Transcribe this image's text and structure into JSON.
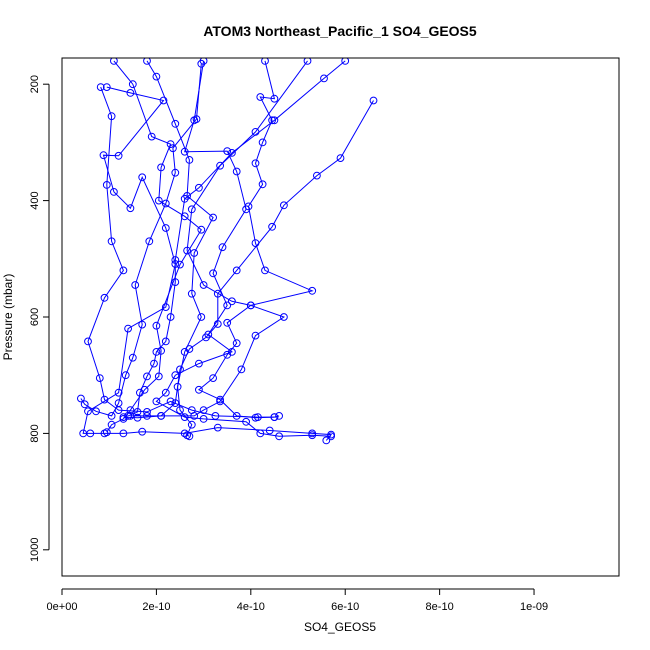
{
  "chart_data": {
    "type": "line",
    "title": "ATOM3 Northeast_Pacific_1 SO4_GEOS5",
    "xlabel": "SO4_GEOS5",
    "ylabel": "Pressure (mbar)",
    "xlim": [
      0,
      1.18e-09
    ],
    "ylim": [
      1045,
      155
    ],
    "y_reversed": true,
    "grid": false,
    "legend": "none",
    "x_ticks": [
      {
        "value": 0,
        "label": "0e+00"
      },
      {
        "value": 2e-10,
        "label": "2e-10"
      },
      {
        "value": 4e-10,
        "label": "4e-10"
      },
      {
        "value": 6e-10,
        "label": "6e-10"
      },
      {
        "value": 8e-10,
        "label": "8e-10"
      },
      {
        "value": 1e-09,
        "label": "1e-09"
      }
    ],
    "y_ticks": [
      {
        "value": 200,
        "label": "200"
      },
      {
        "value": 400,
        "label": "400"
      },
      {
        "value": 600,
        "label": "600"
      },
      {
        "value": 800,
        "label": "800"
      },
      {
        "value": 1000,
        "label": "1000"
      }
    ],
    "series": [
      {
        "color": "#0000ff",
        "marker": "open-circle",
        "points": [
          [
            9.5e-11,
            205
          ],
          [
            1.45e-10,
            215
          ],
          [
            2.15e-10,
            228
          ],
          [
            1.2e-10,
            323
          ],
          [
            8.8e-11,
            322
          ],
          [
            1.1e-10,
            385
          ],
          [
            1.45e-10,
            413
          ],
          [
            1.7e-10,
            360
          ],
          [
            2.2e-10,
            447
          ],
          [
            2.4e-10,
            509
          ],
          [
            2.2e-10,
            583
          ],
          [
            1.4e-10,
            620
          ],
          [
            1.2e-10,
            730
          ],
          [
            5.5e-11,
            762
          ],
          [
            4.5e-11,
            800
          ],
          [
            6e-11,
            800
          ],
          [
            9e-11,
            800
          ],
          [
            1.3e-10,
            800
          ],
          [
            1.7e-10,
            797
          ],
          [
            2.6e-10,
            800
          ],
          [
            3.3e-10,
            790
          ],
          [
            4.4e-10,
            795
          ],
          [
            5.3e-10,
            800
          ],
          [
            5.7e-10,
            802
          ],
          [
            5.6e-10,
            812
          ]
        ]
      },
      {
        "color": "#0000ff",
        "marker": "open-circle",
        "points": [
          [
            8.2e-11,
            205
          ],
          [
            1.05e-10,
            255
          ],
          [
            9.5e-11,
            373
          ],
          [
            1.05e-10,
            470
          ],
          [
            1.3e-10,
            520
          ],
          [
            9e-11,
            567
          ],
          [
            5.5e-11,
            642
          ],
          [
            8e-11,
            705
          ],
          [
            9e-11,
            742
          ],
          [
            1.2e-10,
            760
          ],
          [
            1.8e-10,
            763
          ],
          [
            2.3e-10,
            745
          ],
          [
            2.75e-10,
            760
          ],
          [
            3.25e-10,
            770
          ],
          [
            4.15e-10,
            772
          ],
          [
            4.5e-10,
            772
          ],
          [
            4.6e-10,
            770
          ]
        ]
      },
      {
        "color": "#0000ff",
        "marker": "open-circle",
        "points": [
          [
            1.1e-10,
            160
          ],
          [
            1.5e-10,
            200
          ],
          [
            1.9e-10,
            290
          ],
          [
            2.3e-10,
            303
          ],
          [
            2.1e-10,
            343
          ],
          [
            2.05e-10,
            400
          ],
          [
            2.6e-10,
            427
          ],
          [
            2.95e-10,
            450
          ],
          [
            2.5e-10,
            510
          ],
          [
            2e-10,
            615
          ],
          [
            2.1e-10,
            658
          ],
          [
            2.05e-10,
            702
          ],
          [
            1.75e-10,
            725
          ],
          [
            1.45e-10,
            760
          ],
          [
            1.3e-10,
            775
          ],
          [
            1.05e-10,
            785
          ],
          [
            9.5e-11,
            798
          ]
        ]
      },
      {
        "color": "#0000ff",
        "marker": "open-circle",
        "points": [
          [
            1.8e-10,
            160
          ],
          [
            2e-10,
            187
          ],
          [
            2.4e-10,
            268
          ],
          [
            2.7e-10,
            330
          ],
          [
            2.65e-10,
            392
          ],
          [
            3.2e-10,
            429
          ],
          [
            2.8e-10,
            490
          ],
          [
            2.75e-10,
            560
          ],
          [
            2.95e-10,
            600
          ],
          [
            2.6e-10,
            660
          ],
          [
            2.45e-10,
            720
          ],
          [
            2.5e-10,
            760
          ],
          [
            2.75e-10,
            785
          ],
          [
            2.65e-10,
            803
          ],
          [
            2.7e-10,
            805
          ]
        ]
      },
      {
        "color": "#0000ff",
        "marker": "open-circle",
        "points": [
          [
            3e-10,
            160
          ],
          [
            2.8e-10,
            262
          ],
          [
            2.6e-10,
            316
          ],
          [
            3.5e-10,
            315
          ],
          [
            3.7e-10,
            350
          ],
          [
            3.9e-10,
            415
          ],
          [
            3.4e-10,
            480
          ],
          [
            3.2e-10,
            525
          ],
          [
            3.5e-10,
            580
          ],
          [
            3.1e-10,
            630
          ],
          [
            3.6e-10,
            660
          ],
          [
            2.9e-10,
            680
          ],
          [
            2.4e-10,
            700
          ],
          [
            2.2e-10,
            730
          ],
          [
            2e-10,
            745
          ],
          [
            2.6e-10,
            772
          ],
          [
            3e-10,
            775
          ],
          [
            3.9e-10,
            780
          ],
          [
            4.2e-10,
            800
          ],
          [
            4.6e-10,
            805
          ],
          [
            5.3e-10,
            803
          ],
          [
            5.7e-10,
            805
          ]
        ]
      },
      {
        "color": "#0000ff",
        "marker": "open-circle",
        "points": [
          [
            4.3e-10,
            160
          ],
          [
            4.5e-10,
            225
          ],
          [
            4.2e-10,
            222
          ],
          [
            4.45e-10,
            262
          ],
          [
            4.25e-10,
            300
          ],
          [
            4.1e-10,
            336
          ],
          [
            4.25e-10,
            372
          ],
          [
            3.95e-10,
            410
          ],
          [
            4.1e-10,
            473
          ],
          [
            4.3e-10,
            520
          ],
          [
            5.3e-10,
            555
          ],
          [
            4e-10,
            580
          ],
          [
            3.5e-10,
            610
          ],
          [
            3.7e-10,
            645
          ],
          [
            3.5e-10,
            665
          ],
          [
            3.2e-10,
            705
          ],
          [
            2.9e-10,
            725
          ],
          [
            3.35e-10,
            742
          ],
          [
            3.7e-10,
            770
          ],
          [
            4.1e-10,
            773
          ],
          [
            4.5e-10,
            772
          ]
        ]
      },
      {
        "color": "#0000ff",
        "marker": "open-circle",
        "points": [
          [
            6e-10,
            160
          ],
          [
            5.55e-10,
            190
          ],
          [
            4.5e-10,
            262
          ],
          [
            3.6e-10,
            318
          ],
          [
            2.9e-10,
            378
          ],
          [
            2.6e-10,
            397
          ],
          [
            2.4e-10,
            502
          ],
          [
            2.4e-10,
            540
          ],
          [
            2.3e-10,
            600
          ],
          [
            2.2e-10,
            642
          ],
          [
            2e-10,
            660
          ],
          [
            1.95e-10,
            680
          ],
          [
            1.8e-10,
            702
          ],
          [
            1.65e-10,
            730
          ],
          [
            1.6e-10,
            763
          ],
          [
            1.4e-10,
            770
          ]
        ]
      },
      {
        "color": "#0000ff",
        "marker": "open-circle",
        "points": [
          [
            6.6e-10,
            228
          ],
          [
            5.9e-10,
            327
          ],
          [
            5.4e-10,
            357
          ],
          [
            4.7e-10,
            408
          ],
          [
            4.45e-10,
            445
          ],
          [
            3.7e-10,
            520
          ],
          [
            3.3e-10,
            560
          ],
          [
            3.3e-10,
            612
          ],
          [
            3.05e-10,
            635
          ],
          [
            2.7e-10,
            655
          ],
          [
            2.5e-10,
            690
          ],
          [
            2.4e-10,
            748
          ],
          [
            2.1e-10,
            770
          ],
          [
            1.6e-10,
            773
          ],
          [
            1.3e-10,
            772
          ]
        ]
      },
      {
        "color": "#0000ff",
        "marker": "open-circle",
        "points": [
          [
            5.2e-10,
            160
          ],
          [
            4.1e-10,
            282
          ],
          [
            3.35e-10,
            340
          ],
          [
            2.75e-10,
            415
          ],
          [
            2.65e-10,
            486
          ],
          [
            3e-10,
            545
          ],
          [
            3.6e-10,
            573
          ],
          [
            4e-10,
            580
          ],
          [
            4.7e-10,
            600
          ],
          [
            4.1e-10,
            632
          ],
          [
            3.8e-10,
            690
          ],
          [
            3.35e-10,
            745
          ],
          [
            3e-10,
            760
          ],
          [
            2.8e-10,
            770
          ],
          [
            2.1e-10,
            770
          ],
          [
            1.8e-10,
            770
          ],
          [
            1.45e-10,
            770
          ]
        ]
      },
      {
        "color": "#0000ff",
        "marker": "open-circle",
        "points": [
          [
            2.95e-10,
            165
          ],
          [
            2.85e-10,
            260
          ],
          [
            2.35e-10,
            310
          ],
          [
            2.4e-10,
            352
          ],
          [
            2.2e-10,
            405
          ],
          [
            1.85e-10,
            470
          ],
          [
            1.55e-10,
            545
          ],
          [
            1.7e-10,
            613
          ],
          [
            1.5e-10,
            670
          ],
          [
            1.35e-10,
            700
          ],
          [
            1.2e-10,
            748
          ],
          [
            1.05e-10,
            770
          ],
          [
            7.2e-11,
            762
          ],
          [
            4.8e-11,
            750
          ],
          [
            4e-11,
            740
          ]
        ]
      }
    ]
  }
}
